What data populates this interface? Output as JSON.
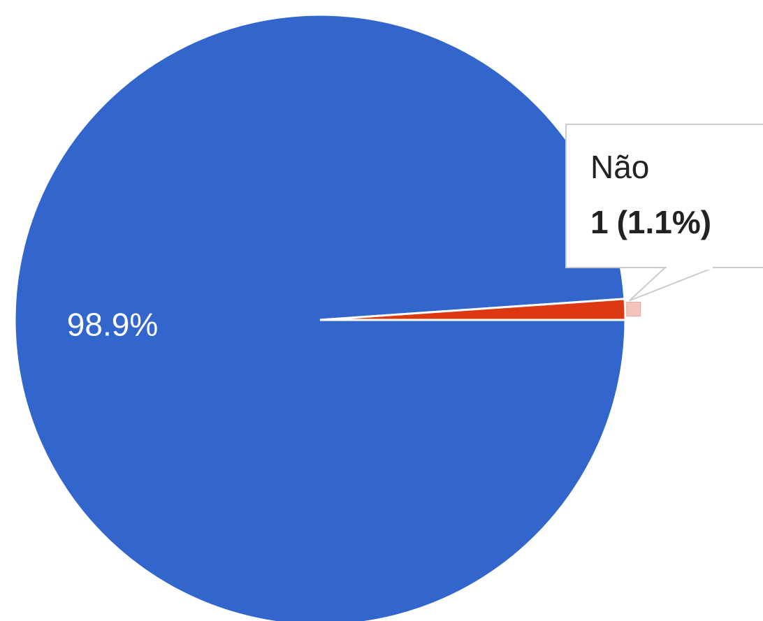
{
  "chart_data": {
    "type": "pie",
    "categories": [
      null,
      "Não"
    ],
    "values": [
      98.9,
      1.1
    ],
    "value_labels": [
      "98.9%",
      "(1.1%)"
    ],
    "counts": [
      null,
      1
    ],
    "colors": [
      "#3366cc",
      "#dc3912"
    ],
    "tooltip_index": 1
  }
}
